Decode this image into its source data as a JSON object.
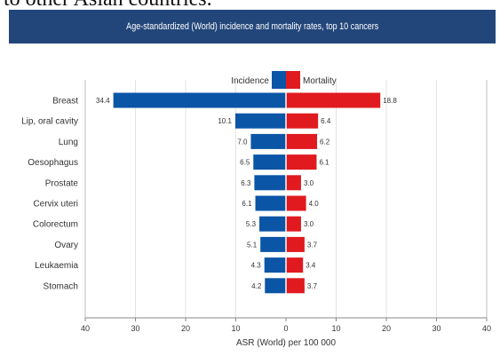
{
  "page": {
    "top_text": "to other Asian countries.",
    "header_bg": "#22467a"
  },
  "chart_data": {
    "type": "bar",
    "title": "Age-standardized (World) incidence and mortality rates, top 10 cancers",
    "xlabel": "ASR (World) per 100 000",
    "xlim": [
      -40,
      40
    ],
    "xticks": [
      -40,
      -30,
      -20,
      -10,
      0,
      10,
      20,
      30,
      40
    ],
    "xtick_labels": [
      "40",
      "30",
      "20",
      "10",
      "0",
      "10",
      "20",
      "30",
      "40"
    ],
    "grid": true,
    "legend_position": "top-center",
    "categories": [
      "Breast",
      "Lip, oral cavity",
      "Lung",
      "Oesophagus",
      "Prostate",
      "Cervix uteri",
      "Colorectum",
      "Ovary",
      "Leukaemia",
      "Stomach"
    ],
    "series": [
      {
        "name": "Incidence",
        "side": "left",
        "color": "#0a55a6",
        "values": [
          34.4,
          10.1,
          7.0,
          6.5,
          6.3,
          6.1,
          5.3,
          5.1,
          4.3,
          4.2
        ],
        "labels": [
          "34.4",
          "10.1",
          "7.0",
          "6.5",
          "6.3",
          "6.1",
          "5.3",
          "5.1",
          "4.3",
          "4.2"
        ]
      },
      {
        "name": "Mortality",
        "side": "right",
        "color": "#e01a1f",
        "values": [
          18.8,
          6.4,
          6.2,
          6.1,
          3.0,
          4.0,
          3.0,
          3.7,
          3.4,
          3.7
        ],
        "labels": [
          "18.8",
          "6.4",
          "6.2",
          "6.1",
          "3.0",
          "4.0",
          "3.0",
          "3.7",
          "3.4",
          "3.7"
        ]
      }
    ]
  }
}
